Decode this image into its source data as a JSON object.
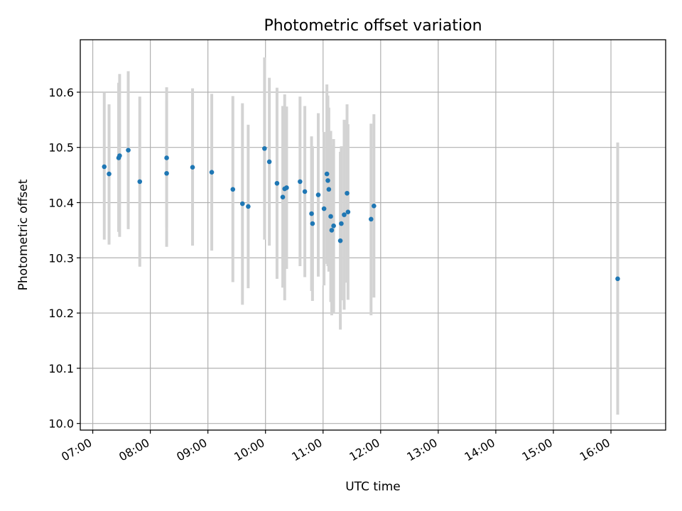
{
  "chart_data": {
    "type": "scatter",
    "title": "Photometric offset variation",
    "xlabel": "UTC time",
    "ylabel": "Photometric offset",
    "x_ticks": [
      "07:00",
      "08:00",
      "09:00",
      "10:00",
      "11:00",
      "12:00",
      "13:00",
      "14:00",
      "15:00",
      "16:00"
    ],
    "y_ticks": [
      "10.0",
      "10.1",
      "10.2",
      "10.3",
      "10.4",
      "10.5",
      "10.6"
    ],
    "xlim": [
      "06:47",
      "16:57"
    ],
    "ylim": [
      9.988,
      10.695
    ],
    "grid": true,
    "legend": "none",
    "colors": {
      "point": "#1f77b4",
      "errorbar": "#d3d3d3"
    },
    "points": [
      {
        "t": "07:12",
        "y": 10.465,
        "ylo": 10.333,
        "yhi": 10.6
      },
      {
        "t": "07:17",
        "y": 10.452,
        "ylo": 10.324,
        "yhi": 10.578
      },
      {
        "t": "07:27",
        "y": 10.481,
        "ylo": 10.347,
        "yhi": 10.617
      },
      {
        "t": "07:28",
        "y": 10.485,
        "ylo": 10.338,
        "yhi": 10.633
      },
      {
        "t": "07:37",
        "y": 10.495,
        "ylo": 10.352,
        "yhi": 10.638
      },
      {
        "t": "07:49",
        "y": 10.438,
        "ylo": 10.284,
        "yhi": 10.592
      },
      {
        "t": "08:17",
        "y": 10.481,
        "ylo": 10.355,
        "yhi": 10.609
      },
      {
        "t": "08:17",
        "y": 10.453,
        "ylo": 10.32,
        "yhi": 10.585
      },
      {
        "t": "08:44",
        "y": 10.464,
        "ylo": 10.322,
        "yhi": 10.607
      },
      {
        "t": "09:04",
        "y": 10.455,
        "ylo": 10.313,
        "yhi": 10.597
      },
      {
        "t": "09:26",
        "y": 10.424,
        "ylo": 10.256,
        "yhi": 10.593
      },
      {
        "t": "09:36",
        "y": 10.398,
        "ylo": 10.215,
        "yhi": 10.58
      },
      {
        "t": "09:42",
        "y": 10.393,
        "ylo": 10.245,
        "yhi": 10.541
      },
      {
        "t": "09:59",
        "y": 10.498,
        "ylo": 10.333,
        "yhi": 10.663
      },
      {
        "t": "10:04",
        "y": 10.474,
        "ylo": 10.322,
        "yhi": 10.626
      },
      {
        "t": "10:12",
        "y": 10.435,
        "ylo": 10.262,
        "yhi": 10.608
      },
      {
        "t": "10:18",
        "y": 10.41,
        "ylo": 10.246,
        "yhi": 10.575
      },
      {
        "t": "10:20",
        "y": 10.425,
        "ylo": 10.223,
        "yhi": 10.596
      },
      {
        "t": "10:22",
        "y": 10.427,
        "ylo": 10.28,
        "yhi": 10.574
      },
      {
        "t": "10:36",
        "y": 10.438,
        "ylo": 10.285,
        "yhi": 10.592
      },
      {
        "t": "10:41",
        "y": 10.42,
        "ylo": 10.265,
        "yhi": 10.575
      },
      {
        "t": "10:48",
        "y": 10.38,
        "ylo": 10.24,
        "yhi": 10.52
      },
      {
        "t": "10:49",
        "y": 10.362,
        "ylo": 10.222,
        "yhi": 10.502
      },
      {
        "t": "10:55",
        "y": 10.414,
        "ylo": 10.266,
        "yhi": 10.562
      },
      {
        "t": "11:01",
        "y": 10.389,
        "ylo": 10.25,
        "yhi": 10.528
      },
      {
        "t": "11:04",
        "y": 10.452,
        "ylo": 10.289,
        "yhi": 10.614
      },
      {
        "t": "11:05",
        "y": 10.44,
        "ylo": 10.285,
        "yhi": 10.594
      },
      {
        "t": "11:06",
        "y": 10.424,
        "ylo": 10.275,
        "yhi": 10.572
      },
      {
        "t": "11:08",
        "y": 10.375,
        "ylo": 10.22,
        "yhi": 10.53
      },
      {
        "t": "11:09",
        "y": 10.35,
        "ylo": 10.196,
        "yhi": 10.504
      },
      {
        "t": "11:11",
        "y": 10.358,
        "ylo": 10.2,
        "yhi": 10.515
      },
      {
        "t": "11:18",
        "y": 10.331,
        "ylo": 10.17,
        "yhi": 10.492
      },
      {
        "t": "11:19",
        "y": 10.362,
        "ylo": 10.223,
        "yhi": 10.502
      },
      {
        "t": "11:22",
        "y": 10.378,
        "ylo": 10.206,
        "yhi": 10.55
      },
      {
        "t": "11:25",
        "y": 10.417,
        "ylo": 10.255,
        "yhi": 10.578
      },
      {
        "t": "11:26",
        "y": 10.383,
        "ylo": 10.224,
        "yhi": 10.542
      },
      {
        "t": "11:50",
        "y": 10.37,
        "ylo": 10.196,
        "yhi": 10.543
      },
      {
        "t": "11:53",
        "y": 10.394,
        "ylo": 10.228,
        "yhi": 10.56
      },
      {
        "t": "16:07",
        "y": 10.262,
        "ylo": 10.016,
        "yhi": 10.509
      }
    ]
  }
}
